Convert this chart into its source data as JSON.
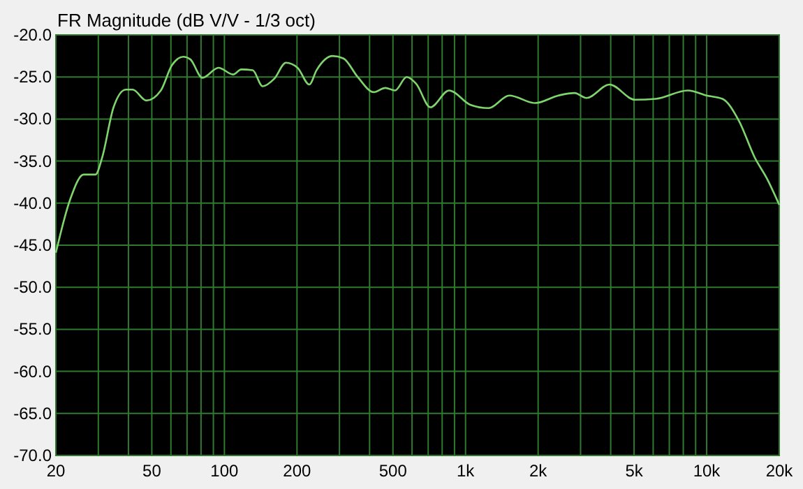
{
  "chart_data": {
    "type": "line",
    "title": "FR Magnitude (dB V/V - 1/3 oct)",
    "log": "x",
    "grid": true,
    "marker": "none",
    "line_style": "solid",
    "xlim": [
      20,
      20000
    ],
    "xticks": [
      20,
      {
        "value": 30,
        "label": null
      },
      {
        "value": 40,
        "label": null
      },
      50,
      {
        "value": 60,
        "label": null
      },
      {
        "value": 70,
        "label": null
      },
      {
        "value": 80,
        "label": null
      },
      {
        "value": 90,
        "label": null
      },
      100,
      200,
      {
        "value": 300,
        "label": null
      },
      {
        "value": 400,
        "label": null
      },
      500,
      {
        "value": 600,
        "label": null
      },
      {
        "value": 700,
        "label": null
      },
      {
        "value": 800,
        "label": null
      },
      {
        "value": 900,
        "label": null
      },
      {
        "value": 1000,
        "label": "1k"
      },
      {
        "value": 2000,
        "label": "2k"
      },
      {
        "value": 3000,
        "label": null
      },
      {
        "value": 4000,
        "label": null
      },
      {
        "value": 5000,
        "label": "5k"
      },
      {
        "value": 6000,
        "label": null
      },
      {
        "value": 7000,
        "label": null
      },
      {
        "value": 8000,
        "label": null
      },
      {
        "value": 9000,
        "label": null
      },
      {
        "value": 10000,
        "label": "10k"
      },
      {
        "value": 20000,
        "label": "20k"
      }
    ],
    "ylim": [
      -70,
      -20
    ],
    "yticks": [
      {
        "value": -70,
        "label": "-70.0"
      },
      {
        "value": -65,
        "label": "-65.0"
      },
      {
        "value": -60,
        "label": "-60.0"
      },
      {
        "value": -55,
        "label": "-55.0"
      },
      {
        "value": -50,
        "label": "-50.0"
      },
      {
        "value": -45,
        "label": "-45.0"
      },
      {
        "value": -40,
        "label": "-40.0"
      },
      {
        "value": -35,
        "label": "-35.0"
      },
      {
        "value": -30,
        "label": "-30.0"
      },
      {
        "value": -25,
        "label": "-25.0"
      },
      {
        "value": -20,
        "label": "-20.0"
      }
    ],
    "series": [
      {
        "color": "#7fd46e",
        "x": [
          20,
          22.9,
          26.1,
          29.2,
          31.1,
          34.7,
          39,
          41.6,
          47.5,
          54.5,
          60.6,
          67.6,
          72.2,
          81,
          94.5,
          108.6,
          117.6,
          131,
          144,
          161,
          180,
          201,
          225,
          241,
          281,
          312,
          357,
          416,
          465,
          510,
          570,
          624,
          715,
          855,
          1046,
          1247,
          1519,
          1944,
          2428,
          2836,
          3170,
          3956,
          5040,
          6150,
          8360,
          9980,
          11630,
          13600,
          15840,
          17800,
          20000
        ],
        "values": [
          -45.9,
          -39.6,
          -36.6,
          -36.6,
          -34.6,
          -28.6,
          -26.5,
          -26.5,
          -27.8,
          -26.6,
          -23.6,
          -22.6,
          -22.9,
          -25.1,
          -23.9,
          -24.7,
          -24.1,
          -24.2,
          -26.1,
          -25.2,
          -23.3,
          -23.9,
          -25.9,
          -24.2,
          -22.5,
          -22.8,
          -25,
          -26.8,
          -26.3,
          -26.6,
          -25,
          -25.8,
          -28.6,
          -26.6,
          -28.3,
          -28.7,
          -27.2,
          -28.1,
          -27.2,
          -26.9,
          -27.5,
          -25.9,
          -27.7,
          -27.6,
          -26.6,
          -27.2,
          -27.6,
          -30.2,
          -34.6,
          -37.1,
          -40.2
        ]
      }
    ]
  }
}
